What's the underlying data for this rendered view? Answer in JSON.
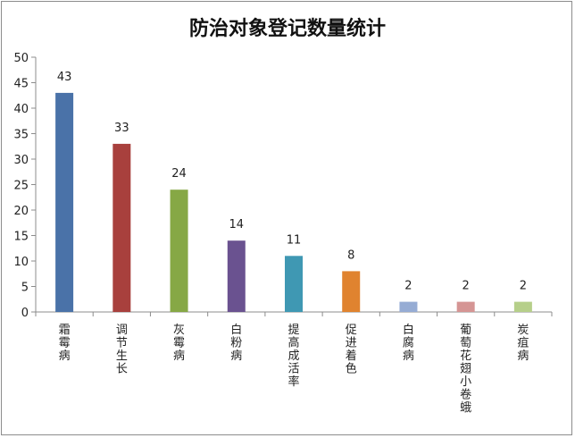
{
  "chart_data": {
    "type": "bar",
    "title": "防治对象登记数量统计",
    "categories": [
      "霜霉病",
      "调节生长",
      "灰霉病",
      "白粉病",
      "提高成活率",
      "促进着色",
      "白腐病",
      "葡萄花翅小卷蛾",
      "炭疽病"
    ],
    "values": [
      43,
      33,
      24,
      14,
      11,
      8,
      2,
      2,
      2
    ],
    "colors": [
      "#4a72a8",
      "#a8403d",
      "#86a845",
      "#6a5290",
      "#3f98b3",
      "#e0832f",
      "#96acd4",
      "#d59594",
      "#b6cf8a"
    ],
    "ylim": [
      0,
      50
    ],
    "yticks": [
      0,
      5,
      10,
      15,
      20,
      25,
      30,
      35,
      40,
      45,
      50
    ],
    "grid": false,
    "legend": "none"
  }
}
